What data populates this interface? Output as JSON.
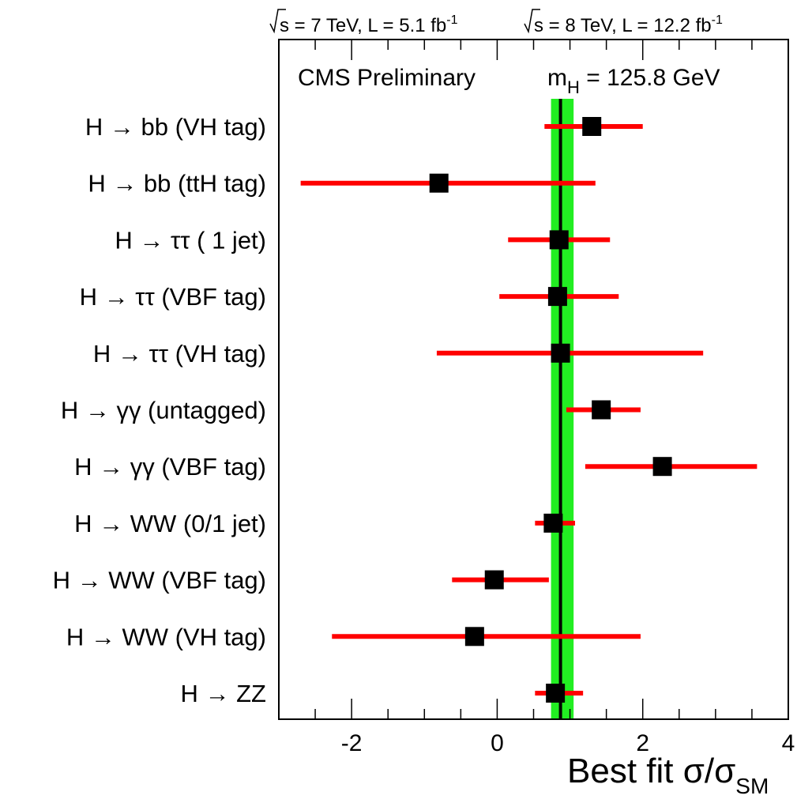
{
  "header": {
    "lumi_7": {
      "pre": "s = 7 TeV, L =   5.1 fb",
      "sup": "-1"
    },
    "lumi_8": {
      "pre": "s = 8 TeV, L = 12.2 fb",
      "sup": "-1"
    }
  },
  "chart_data": {
    "type": "scatter",
    "annotation_left": "CMS Preliminary",
    "annotation_right": {
      "main": "m",
      "sub": "H",
      "rest": " = 125.8 GeV"
    },
    "xlabel": {
      "main": "Best fit σ/σ",
      "sub": "SM"
    },
    "xlim": [
      -3,
      4
    ],
    "xticks": [
      -2,
      0,
      2,
      4
    ],
    "combined": {
      "value": 0.87,
      "low": 0.74,
      "high": 1.05
    },
    "colors": {
      "band": "#22ee22",
      "error_bar": "#ff0000",
      "marker": "#000000",
      "combined_line": "#000000"
    },
    "categories": [
      "H → bb (VH tag)",
      "H → bb (ttH tag)",
      "H → ττ (   1 jet)",
      "H → ττ (VBF tag)",
      "H → ττ (VH tag)",
      "H → γγ (untagged)",
      "H → γγ (VBF tag)",
      "H → WW (0/1 jet)",
      "H → WW (VBF tag)",
      "H → WW (VH tag)",
      "H → ZZ"
    ],
    "points": [
      {
        "value": 1.3,
        "low": 0.65,
        "high": 2.0
      },
      {
        "value": -0.8,
        "low": -2.7,
        "high": 1.35
      },
      {
        "value": 0.85,
        "low": 0.15,
        "high": 1.55
      },
      {
        "value": 0.83,
        "low": 0.03,
        "high": 1.67
      },
      {
        "value": 0.87,
        "low": -0.83,
        "high": 2.83
      },
      {
        "value": 1.43,
        "low": 0.95,
        "high": 1.97
      },
      {
        "value": 2.27,
        "low": 1.21,
        "high": 3.57
      },
      {
        "value": 0.77,
        "low": 0.52,
        "high": 1.07
      },
      {
        "value": -0.04,
        "low": -0.62,
        "high": 0.71
      },
      {
        "value": -0.31,
        "low": -2.27,
        "high": 1.97
      },
      {
        "value": 0.8,
        "low": 0.52,
        "high": 1.18
      }
    ]
  }
}
